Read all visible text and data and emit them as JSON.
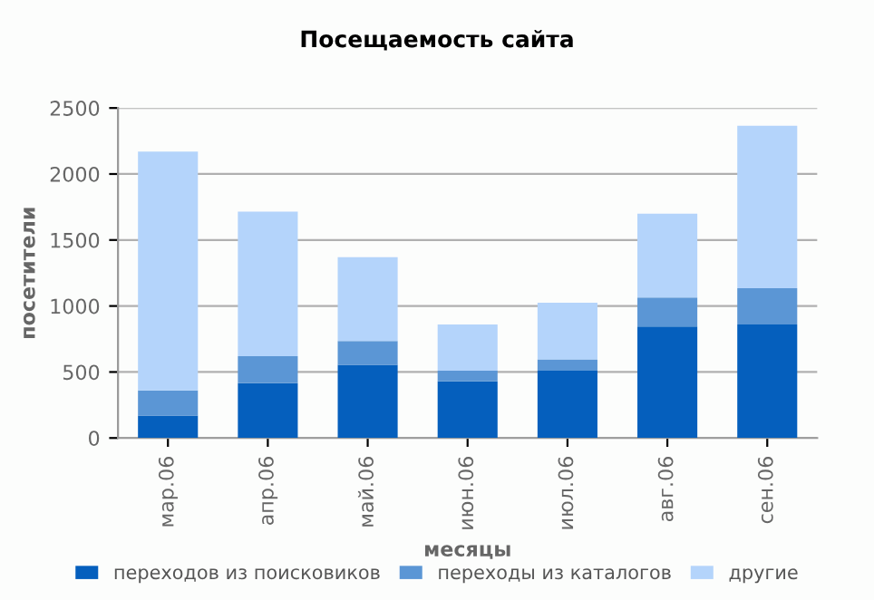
{
  "chart_data": {
    "type": "bar",
    "stacked": true,
    "title": "Посещаемость сайта",
    "xlabel": "месяцы",
    "ylabel": "посетители",
    "categories": [
      "мар.06",
      "апр.06",
      "май.06",
      "июн.06",
      "июл.06",
      "авг.06",
      "сен.06"
    ],
    "series": [
      {
        "name": "переходов из поисковиков",
        "color": "#055fbd",
        "values": [
          170,
          415,
          555,
          430,
          510,
          845,
          860
        ]
      },
      {
        "name": "переходы из каталогов",
        "color": "#5b96d5",
        "values": [
          190,
          205,
          180,
          80,
          85,
          220,
          275
        ]
      },
      {
        "name": "другие",
        "color": "#b4d4fb",
        "values": [
          1810,
          1095,
          635,
          350,
          430,
          635,
          1230
        ]
      }
    ],
    "ylim": [
      0,
      2500
    ],
    "yticks": [
      0,
      500,
      1000,
      1500,
      2000,
      2500
    ],
    "grid": "y",
    "legend": "bottom"
  }
}
